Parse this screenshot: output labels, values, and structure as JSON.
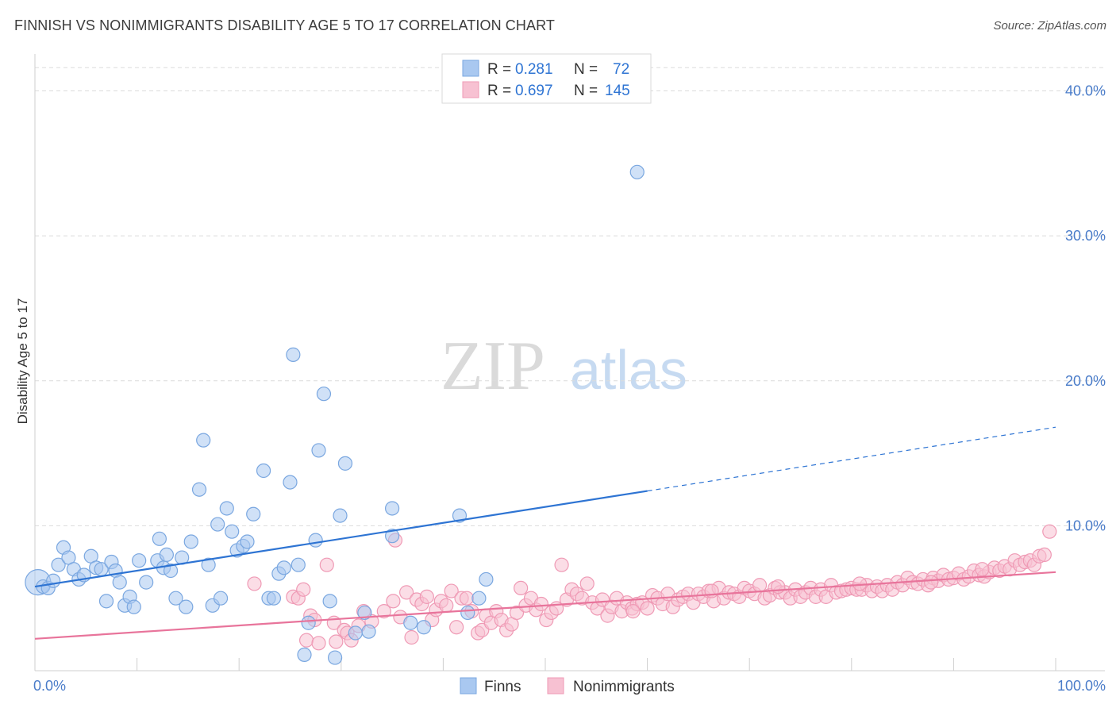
{
  "header": {
    "title": "FINNISH VS NONIMMIGRANTS DISABILITY AGE 5 TO 17 CORRELATION CHART",
    "source": "Source: ZipAtlas.com"
  },
  "watermark": {
    "zip": "ZIP",
    "atlas": "atlas"
  },
  "legend": {
    "rows": [
      {
        "r_label": "R =",
        "r_value": "0.281",
        "n_label": "N =",
        "n_value": "72",
        "color": "#a9c8f0"
      },
      {
        "r_label": "R =",
        "r_value": "0.697",
        "n_label": "N =",
        "n_value": "145",
        "color": "#f5b6c9"
      }
    ]
  },
  "bottom_legend": [
    {
      "label": "Finns",
      "color": "#a9c8f0"
    },
    {
      "label": "Nonimmigrants",
      "color": "#f5b6c9"
    }
  ],
  "colors": {
    "finns_fill": "#a9c8f0",
    "finns_stroke": "#7aa7e0",
    "finns_line": "#2e74d3",
    "non_fill": "#f7c1d2",
    "non_stroke": "#ef9ab5",
    "non_line": "#e8749b",
    "grid": "#dcdcdc",
    "axis_text": "#4a7cc9"
  },
  "chart_data": {
    "type": "scatter",
    "xlabel": "",
    "ylabel": "Disability Age 5 to 17",
    "xlim": [
      0,
      100
    ],
    "ylim": [
      0,
      42
    ],
    "x_tick_labels": [
      {
        "value": 0,
        "label": "0.0%"
      },
      {
        "value": 100,
        "label": "100.0%"
      }
    ],
    "y_tick_labels": [
      {
        "value": 10,
        "label": "10.0%"
      },
      {
        "value": 20,
        "label": "20.0%"
      },
      {
        "value": 30,
        "label": "30.0%"
      },
      {
        "value": 40,
        "label": "40.0%"
      }
    ],
    "grid": true,
    "legend_position": "top-center",
    "series": [
      {
        "name": "Finns",
        "points": [
          [
            0.3,
            6.1
          ],
          [
            0.8,
            5.8
          ],
          [
            1.3,
            5.7
          ],
          [
            1.8,
            6.2
          ],
          [
            2.3,
            7.3
          ],
          [
            2.8,
            8.5
          ],
          [
            3.3,
            7.8
          ],
          [
            3.8,
            7.0
          ],
          [
            4.3,
            6.3
          ],
          [
            4.8,
            6.6
          ],
          [
            5.5,
            7.9
          ],
          [
            6.0,
            7.1
          ],
          [
            6.5,
            7.0
          ],
          [
            7.0,
            4.8
          ],
          [
            7.5,
            7.5
          ],
          [
            7.9,
            6.9
          ],
          [
            8.3,
            6.1
          ],
          [
            8.8,
            4.5
          ],
          [
            9.3,
            5.1
          ],
          [
            9.7,
            4.4
          ],
          [
            10.2,
            7.6
          ],
          [
            10.9,
            6.1
          ],
          [
            12.0,
            7.6
          ],
          [
            12.2,
            9.1
          ],
          [
            12.6,
            7.1
          ],
          [
            12.9,
            8.0
          ],
          [
            13.3,
            6.9
          ],
          [
            13.8,
            5.0
          ],
          [
            14.4,
            7.8
          ],
          [
            14.8,
            4.4
          ],
          [
            15.3,
            8.9
          ],
          [
            16.1,
            12.5
          ],
          [
            16.5,
            15.9
          ],
          [
            17.0,
            7.3
          ],
          [
            17.4,
            4.5
          ],
          [
            17.9,
            10.1
          ],
          [
            18.2,
            5.0
          ],
          [
            18.8,
            11.2
          ],
          [
            19.3,
            9.6
          ],
          [
            19.8,
            8.3
          ],
          [
            20.4,
            8.6
          ],
          [
            20.8,
            8.9
          ],
          [
            21.4,
            10.8
          ],
          [
            22.4,
            13.8
          ],
          [
            22.9,
            5.0
          ],
          [
            23.4,
            5.0
          ],
          [
            23.9,
            6.7
          ],
          [
            24.4,
            7.1
          ],
          [
            25.0,
            13.0
          ],
          [
            25.3,
            21.8
          ],
          [
            25.8,
            7.3
          ],
          [
            26.4,
            1.1
          ],
          [
            26.8,
            3.3
          ],
          [
            27.5,
            9.0
          ],
          [
            27.8,
            15.2
          ],
          [
            28.3,
            19.1
          ],
          [
            28.9,
            4.8
          ],
          [
            29.4,
            0.9
          ],
          [
            29.9,
            10.7
          ],
          [
            30.4,
            14.3
          ],
          [
            31.4,
            2.6
          ],
          [
            32.3,
            4.0
          ],
          [
            32.7,
            2.7
          ],
          [
            35.0,
            11.2
          ],
          [
            35.0,
            9.3
          ],
          [
            36.8,
            3.3
          ],
          [
            38.1,
            3.0
          ],
          [
            41.6,
            10.7
          ],
          [
            42.4,
            4.0
          ],
          [
            43.5,
            5.0
          ],
          [
            44.2,
            6.3
          ],
          [
            59.0,
            34.4
          ]
        ],
        "trend": {
          "x": [
            0,
            60
          ],
          "y": [
            5.8,
            12.4
          ],
          "dashed_extension": {
            "x": [
              60,
              100
            ],
            "y": [
              12.4,
              16.8
            ]
          }
        }
      },
      {
        "name": "Nonimmigrants",
        "points": [
          [
            21.5,
            6.0
          ],
          [
            25.3,
            5.1
          ],
          [
            25.8,
            5.0
          ],
          [
            26.3,
            5.6
          ],
          [
            26.6,
            2.1
          ],
          [
            27.0,
            3.8
          ],
          [
            27.4,
            3.5
          ],
          [
            27.8,
            1.9
          ],
          [
            28.6,
            7.3
          ],
          [
            29.3,
            3.3
          ],
          [
            29.5,
            2.0
          ],
          [
            30.3,
            2.8
          ],
          [
            30.6,
            2.6
          ],
          [
            31.0,
            2.1
          ],
          [
            31.7,
            3.1
          ],
          [
            32.2,
            4.1
          ],
          [
            33.0,
            3.4
          ],
          [
            34.2,
            4.1
          ],
          [
            35.1,
            4.8
          ],
          [
            35.3,
            9.0
          ],
          [
            35.8,
            3.7
          ],
          [
            36.4,
            5.4
          ],
          [
            36.9,
            2.3
          ],
          [
            37.4,
            4.9
          ],
          [
            37.9,
            4.6
          ],
          [
            38.4,
            5.1
          ],
          [
            38.9,
            3.5
          ],
          [
            39.3,
            4.2
          ],
          [
            39.8,
            4.8
          ],
          [
            40.3,
            4.5
          ],
          [
            40.8,
            5.5
          ],
          [
            41.3,
            3.0
          ],
          [
            41.8,
            5.0
          ],
          [
            42.3,
            5.0
          ],
          [
            42.8,
            4.1
          ],
          [
            43.4,
            2.6
          ],
          [
            43.8,
            2.8
          ],
          [
            44.2,
            3.8
          ],
          [
            44.7,
            3.3
          ],
          [
            45.2,
            4.1
          ],
          [
            45.7,
            3.5
          ],
          [
            46.2,
            2.8
          ],
          [
            46.7,
            3.2
          ],
          [
            47.2,
            4.0
          ],
          [
            47.6,
            5.7
          ],
          [
            48.1,
            4.5
          ],
          [
            48.6,
            5.0
          ],
          [
            49.1,
            4.2
          ],
          [
            49.6,
            4.6
          ],
          [
            50.1,
            3.5
          ],
          [
            50.6,
            4.0
          ],
          [
            51.1,
            4.3
          ],
          [
            51.6,
            7.3
          ],
          [
            52.1,
            4.9
          ],
          [
            52.6,
            5.6
          ],
          [
            53.1,
            5.3
          ],
          [
            53.6,
            5.0
          ],
          [
            54.1,
            6.0
          ],
          [
            54.6,
            4.7
          ],
          [
            55.1,
            4.3
          ],
          [
            55.6,
            4.9
          ],
          [
            56.1,
            3.8
          ],
          [
            56.5,
            4.4
          ],
          [
            57.0,
            5.0
          ],
          [
            57.5,
            4.1
          ],
          [
            58.0,
            4.7
          ],
          [
            58.5,
            4.3
          ],
          [
            59.0,
            4.6
          ],
          [
            59.5,
            4.7
          ],
          [
            60.0,
            4.3
          ],
          [
            60.5,
            5.2
          ],
          [
            61.0,
            5.0
          ],
          [
            61.5,
            4.6
          ],
          [
            62.0,
            5.3
          ],
          [
            62.5,
            4.4
          ],
          [
            63.0,
            4.9
          ],
          [
            63.5,
            5.1
          ],
          [
            64.0,
            5.3
          ],
          [
            64.5,
            4.7
          ],
          [
            65.0,
            5.3
          ],
          [
            65.5,
            5.1
          ],
          [
            66.0,
            5.5
          ],
          [
            66.5,
            4.8
          ],
          [
            67.0,
            5.7
          ],
          [
            67.5,
            5.0
          ],
          [
            68.0,
            5.4
          ],
          [
            68.5,
            5.3
          ],
          [
            69.0,
            5.1
          ],
          [
            69.5,
            5.7
          ],
          [
            70.0,
            5.5
          ],
          [
            70.5,
            5.3
          ],
          [
            71.0,
            5.9
          ],
          [
            71.5,
            5.0
          ],
          [
            72.0,
            5.2
          ],
          [
            72.5,
            5.7
          ],
          [
            73.0,
            5.4
          ],
          [
            73.5,
            5.4
          ],
          [
            74.0,
            5.0
          ],
          [
            74.5,
            5.6
          ],
          [
            75.0,
            5.1
          ],
          [
            75.5,
            5.4
          ],
          [
            76.0,
            5.7
          ],
          [
            76.5,
            5.1
          ],
          [
            77.0,
            5.6
          ],
          [
            77.5,
            5.1
          ],
          [
            78.0,
            5.9
          ],
          [
            78.5,
            5.4
          ],
          [
            79.0,
            5.5
          ],
          [
            79.5,
            5.6
          ],
          [
            80.0,
            5.7
          ],
          [
            80.5,
            5.6
          ],
          [
            81.0,
            5.6
          ],
          [
            81.5,
            5.9
          ],
          [
            82.0,
            5.5
          ],
          [
            82.5,
            5.8
          ],
          [
            83.0,
            5.5
          ],
          [
            83.5,
            5.9
          ],
          [
            84.0,
            5.6
          ],
          [
            84.5,
            6.1
          ],
          [
            85.0,
            5.9
          ],
          [
            85.5,
            6.4
          ],
          [
            86.0,
            6.1
          ],
          [
            86.5,
            6.0
          ],
          [
            87.0,
            6.3
          ],
          [
            87.5,
            5.9
          ],
          [
            88.0,
            6.4
          ],
          [
            88.5,
            6.2
          ],
          [
            89.0,
            6.6
          ],
          [
            89.5,
            6.3
          ],
          [
            90.0,
            6.4
          ],
          [
            90.5,
            6.7
          ],
          [
            91.0,
            6.3
          ],
          [
            91.5,
            6.5
          ],
          [
            92.0,
            6.9
          ],
          [
            92.5,
            6.6
          ],
          [
            93.0,
            6.5
          ],
          [
            93.5,
            6.8
          ],
          [
            94.0,
            7.1
          ],
          [
            94.5,
            6.9
          ],
          [
            95.0,
            7.2
          ],
          [
            95.5,
            7.0
          ],
          [
            96.0,
            7.6
          ],
          [
            96.5,
            7.3
          ],
          [
            97.0,
            7.5
          ],
          [
            97.5,
            7.6
          ],
          [
            97.9,
            7.3
          ],
          [
            98.4,
            7.9
          ],
          [
            98.9,
            8.0
          ],
          [
            99.4,
            9.6
          ],
          [
            58.6,
            4.1
          ],
          [
            66.3,
            5.5
          ],
          [
            72.8,
            5.8
          ],
          [
            80.8,
            6.0
          ],
          [
            87.8,
            6.1
          ],
          [
            92.8,
            7.0
          ]
        ],
        "trend": {
          "x": [
            0,
            100
          ],
          "y": [
            2.2,
            6.8
          ]
        }
      }
    ]
  }
}
